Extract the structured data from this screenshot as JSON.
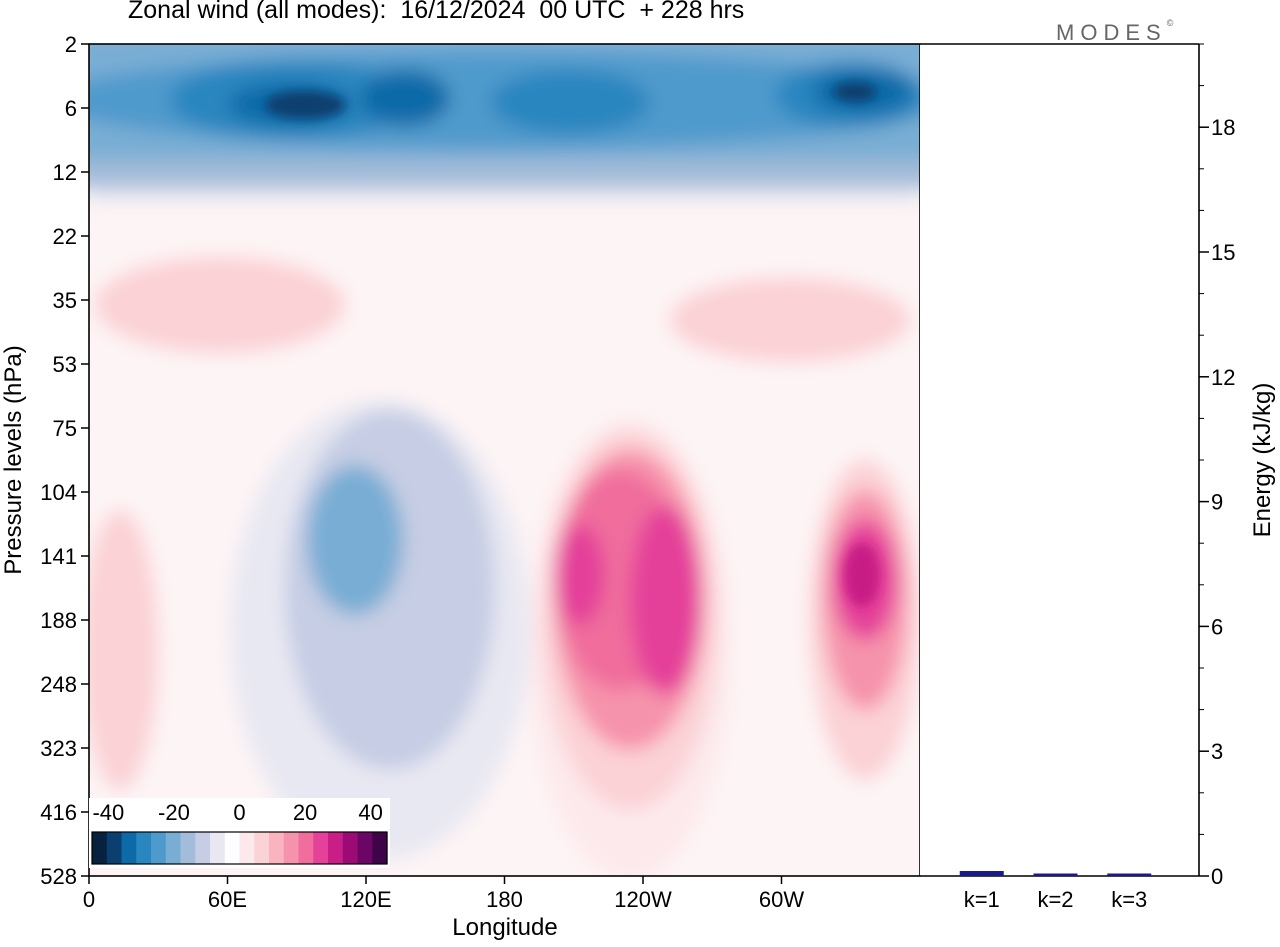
{
  "title": "Zonal wind (all modes):  16/12/2024  00 UTC  + 228 hrs",
  "logo_text": "MODES",
  "logo_mark": "©",
  "chart_data": [
    {
      "type": "heatmap",
      "title": "Zonal wind (all modes):  16/12/2024  00 UTC  + 228 hrs",
      "xlabel": "Longitude",
      "ylabel": "Pressure levels (hPa)",
      "x_ticks": [
        "0",
        "60E",
        "120E",
        "180",
        "120W",
        "60W"
      ],
      "x_range": [
        "0",
        "360"
      ],
      "y_ticks": [
        "2",
        "6",
        "12",
        "22",
        "35",
        "53",
        "75",
        "104",
        "141",
        "188",
        "248",
        "323",
        "416",
        "528"
      ],
      "y_range": [
        2,
        528
      ],
      "colorbar": {
        "tick_labels": [
          "-40",
          "-20",
          "0",
          "20",
          "40"
        ],
        "range": [
          -45,
          45
        ],
        "colors": [
          "#08213f",
          "#0a3f70",
          "#0d6aa8",
          "#2a86bf",
          "#4f9acc",
          "#79add4",
          "#a3bcd9",
          "#c6cde4",
          "#e8e8f2",
          "#fdfcff",
          "#fde9ec",
          "#fbd2d6",
          "#f9b4c0",
          "#f693ac",
          "#f06d9c",
          "#e4419a",
          "#c81e85",
          "#9c0a76",
          "#6b0566",
          "#3f0448"
        ]
      },
      "features": [
        {
          "name": "stratospheric easterly jet",
          "lon": [
            0,
            360
          ],
          "level": [
            2,
            16
          ],
          "value": -30
        },
        {
          "name": "westerly band 1",
          "lon": [
            5,
            115
          ],
          "level": [
            24,
            55
          ],
          "value": 8
        },
        {
          "name": "westerly band 2",
          "lon": [
            255,
            358
          ],
          "level": [
            25,
            50
          ],
          "value": 7
        },
        {
          "name": "easterly trough",
          "lon": [
            75,
            170
          ],
          "level": [
            75,
            480
          ],
          "value": -22
        },
        {
          "name": "upper jet core A",
          "lon": [
            190,
            280
          ],
          "level": [
            95,
            400
          ],
          "value": 34
        },
        {
          "name": "upper jet core B",
          "lon": [
            312,
            358
          ],
          "level": [
            100,
            380
          ],
          "value": 34
        },
        {
          "name": "weak westerly",
          "lon": [
            0,
            40
          ],
          "level": [
            110,
            420
          ],
          "value": 8
        }
      ]
    },
    {
      "type": "bar",
      "ylabel": "Energy (kJ/kg)",
      "categories": [
        "k=1",
        "k=2",
        "k=3"
      ],
      "values": [
        0.12,
        0.06,
        0.06
      ],
      "y_ticks": [
        "0",
        "3",
        "6",
        "9",
        "12",
        "15",
        "18"
      ],
      "ylim": [
        0,
        20
      ],
      "colors": [
        "#1a1a8c",
        "#1a1a8c",
        "#1a1a8c"
      ]
    }
  ]
}
